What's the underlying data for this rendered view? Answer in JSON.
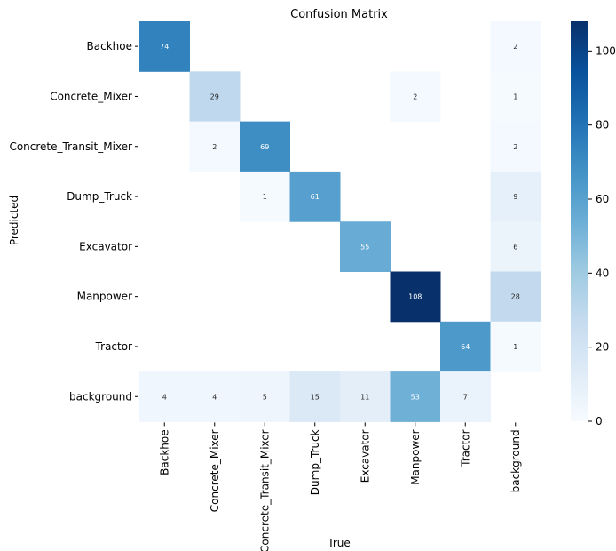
{
  "chart_data": {
    "type": "heatmap",
    "title": "Confusion Matrix",
    "xlabel": "True",
    "ylabel": "Predicted",
    "x_categories": [
      "Backhoe",
      "Concrete_Mixer",
      "Concrete_Transit_Mixer",
      "Dump_Truck",
      "Excavator",
      "Manpower",
      "Tractor",
      "background"
    ],
    "y_categories": [
      "Backhoe",
      "Concrete_Mixer",
      "Concrete_Transit_Mixer",
      "Dump_Truck",
      "Excavator",
      "Manpower",
      "Tractor",
      "background"
    ],
    "values": [
      [
        74,
        null,
        null,
        null,
        null,
        null,
        null,
        2
      ],
      [
        null,
        29,
        null,
        null,
        null,
        2,
        null,
        1
      ],
      [
        null,
        2,
        69,
        null,
        null,
        null,
        null,
        2
      ],
      [
        null,
        null,
        1,
        61,
        null,
        null,
        null,
        9
      ],
      [
        null,
        null,
        null,
        null,
        55,
        null,
        null,
        6
      ],
      [
        null,
        null,
        null,
        null,
        null,
        108,
        null,
        28
      ],
      [
        null,
        null,
        null,
        null,
        null,
        null,
        64,
        1
      ],
      [
        4,
        4,
        5,
        15,
        11,
        53,
        7,
        null
      ]
    ],
    "colorbar": {
      "min": 0,
      "max": 108,
      "ticks": [
        0,
        20,
        40,
        60,
        80,
        100
      ],
      "colormap": "Blues"
    }
  }
}
